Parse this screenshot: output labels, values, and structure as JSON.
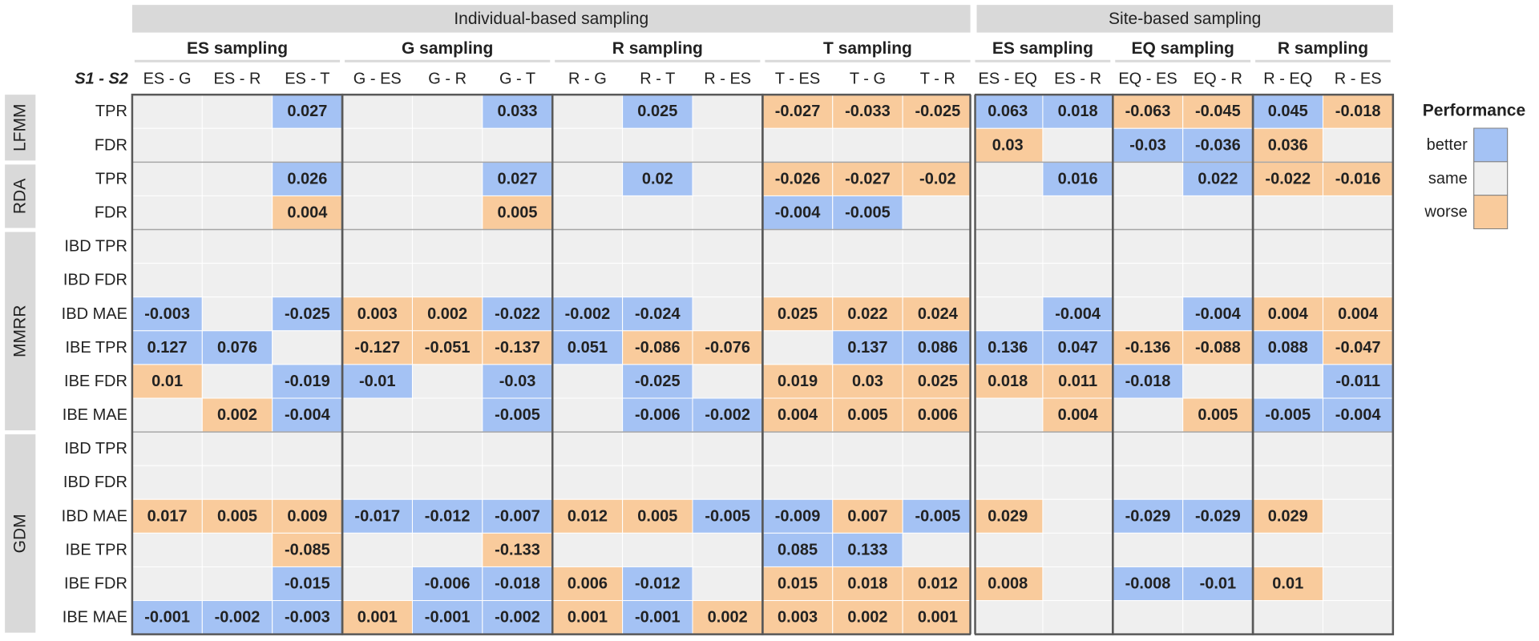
{
  "chart_data": {
    "type": "heatmap",
    "groups": [
      {
        "label": "Individual-based sampling",
        "span": 12
      },
      {
        "label": "Site-based sampling",
        "span": 6
      }
    ],
    "subgroups": [
      {
        "label": "ES sampling",
        "span": 3
      },
      {
        "label": "G sampling",
        "span": 3
      },
      {
        "label": "R sampling",
        "span": 3
      },
      {
        "label": "T sampling",
        "span": 3
      },
      {
        "label": "ES sampling",
        "span": 2
      },
      {
        "label": "EQ sampling",
        "span": 2
      },
      {
        "label": "R sampling",
        "span": 2
      }
    ],
    "corner_label": "S1  -  S2",
    "columns": [
      "ES - G",
      "ES - R",
      "ES - T",
      "G - ES",
      "G - R",
      "G - T",
      "R - G",
      "R - T",
      "R - ES",
      "T - ES",
      "T - G",
      "T - R",
      "ES - EQ",
      "ES - R",
      "EQ - ES",
      "EQ - R",
      "R - EQ",
      "R - ES"
    ],
    "method_blocks": [
      {
        "label": "LFMM",
        "rows": 2
      },
      {
        "label": "RDA",
        "rows": 2
      },
      {
        "label": "MMRR",
        "rows": 6
      },
      {
        "label": "GDM",
        "rows": 6
      }
    ],
    "rows": [
      "TPR",
      "FDR",
      "TPR",
      "FDR",
      "IBD TPR",
      "IBD FDR",
      "IBD MAE",
      "IBE TPR",
      "IBE FDR",
      "IBE MAE",
      "IBD TPR",
      "IBD FDR",
      "IBD MAE",
      "IBE TPR",
      "IBE FDR",
      "IBE MAE"
    ],
    "cells": [
      [
        [
          "s",
          ""
        ],
        [
          "s",
          ""
        ],
        [
          "b",
          "0.027"
        ],
        [
          "s",
          ""
        ],
        [
          "s",
          ""
        ],
        [
          "b",
          "0.033"
        ],
        [
          "s",
          ""
        ],
        [
          "b",
          "0.025"
        ],
        [
          "s",
          ""
        ],
        [
          "w",
          "-0.027"
        ],
        [
          "w",
          "-0.033"
        ],
        [
          "w",
          "-0.025"
        ],
        [
          "b",
          "0.063"
        ],
        [
          "b",
          "0.018"
        ],
        [
          "w",
          "-0.063"
        ],
        [
          "w",
          "-0.045"
        ],
        [
          "b",
          "0.045"
        ],
        [
          "w",
          "-0.018"
        ]
      ],
      [
        [
          "s",
          ""
        ],
        [
          "s",
          ""
        ],
        [
          "s",
          ""
        ],
        [
          "s",
          ""
        ],
        [
          "s",
          ""
        ],
        [
          "s",
          ""
        ],
        [
          "s",
          ""
        ],
        [
          "s",
          ""
        ],
        [
          "s",
          ""
        ],
        [
          "s",
          ""
        ],
        [
          "s",
          ""
        ],
        [
          "s",
          ""
        ],
        [
          "w",
          "0.03"
        ],
        [
          "s",
          ""
        ],
        [
          "b",
          "-0.03"
        ],
        [
          "b",
          "-0.036"
        ],
        [
          "w",
          "0.036"
        ],
        [
          "s",
          ""
        ]
      ],
      [
        [
          "s",
          ""
        ],
        [
          "s",
          ""
        ],
        [
          "b",
          "0.026"
        ],
        [
          "s",
          ""
        ],
        [
          "s",
          ""
        ],
        [
          "b",
          "0.027"
        ],
        [
          "s",
          ""
        ],
        [
          "b",
          "0.02"
        ],
        [
          "s",
          ""
        ],
        [
          "w",
          "-0.026"
        ],
        [
          "w",
          "-0.027"
        ],
        [
          "w",
          "-0.02"
        ],
        [
          "s",
          ""
        ],
        [
          "b",
          "0.016"
        ],
        [
          "s",
          ""
        ],
        [
          "b",
          "0.022"
        ],
        [
          "w",
          "-0.022"
        ],
        [
          "w",
          "-0.016"
        ]
      ],
      [
        [
          "s",
          ""
        ],
        [
          "s",
          ""
        ],
        [
          "w",
          "0.004"
        ],
        [
          "s",
          ""
        ],
        [
          "s",
          ""
        ],
        [
          "w",
          "0.005"
        ],
        [
          "s",
          ""
        ],
        [
          "s",
          ""
        ],
        [
          "s",
          ""
        ],
        [
          "b",
          "-0.004"
        ],
        [
          "b",
          "-0.005"
        ],
        [
          "s",
          ""
        ],
        [
          "s",
          ""
        ],
        [
          "s",
          ""
        ],
        [
          "s",
          ""
        ],
        [
          "s",
          ""
        ],
        [
          "s",
          ""
        ],
        [
          "s",
          ""
        ]
      ],
      [
        [
          "s",
          ""
        ],
        [
          "s",
          ""
        ],
        [
          "s",
          ""
        ],
        [
          "s",
          ""
        ],
        [
          "s",
          ""
        ],
        [
          "s",
          ""
        ],
        [
          "s",
          ""
        ],
        [
          "s",
          ""
        ],
        [
          "s",
          ""
        ],
        [
          "s",
          ""
        ],
        [
          "s",
          ""
        ],
        [
          "s",
          ""
        ],
        [
          "s",
          ""
        ],
        [
          "s",
          ""
        ],
        [
          "s",
          ""
        ],
        [
          "s",
          ""
        ],
        [
          "s",
          ""
        ],
        [
          "s",
          ""
        ]
      ],
      [
        [
          "s",
          ""
        ],
        [
          "s",
          ""
        ],
        [
          "s",
          ""
        ],
        [
          "s",
          ""
        ],
        [
          "s",
          ""
        ],
        [
          "s",
          ""
        ],
        [
          "s",
          ""
        ],
        [
          "s",
          ""
        ],
        [
          "s",
          ""
        ],
        [
          "s",
          ""
        ],
        [
          "s",
          ""
        ],
        [
          "s",
          ""
        ],
        [
          "s",
          ""
        ],
        [
          "s",
          ""
        ],
        [
          "s",
          ""
        ],
        [
          "s",
          ""
        ],
        [
          "s",
          ""
        ],
        [
          "s",
          ""
        ]
      ],
      [
        [
          "b",
          "-0.003"
        ],
        [
          "s",
          ""
        ],
        [
          "b",
          "-0.025"
        ],
        [
          "w",
          "0.003"
        ],
        [
          "w",
          "0.002"
        ],
        [
          "b",
          "-0.022"
        ],
        [
          "b",
          "-0.002"
        ],
        [
          "b",
          "-0.024"
        ],
        [
          "s",
          ""
        ],
        [
          "w",
          "0.025"
        ],
        [
          "w",
          "0.022"
        ],
        [
          "w",
          "0.024"
        ],
        [
          "s",
          ""
        ],
        [
          "b",
          "-0.004"
        ],
        [
          "s",
          ""
        ],
        [
          "b",
          "-0.004"
        ],
        [
          "w",
          "0.004"
        ],
        [
          "w",
          "0.004"
        ]
      ],
      [
        [
          "b",
          "0.127"
        ],
        [
          "b",
          "0.076"
        ],
        [
          "s",
          ""
        ],
        [
          "w",
          "-0.127"
        ],
        [
          "w",
          "-0.051"
        ],
        [
          "w",
          "-0.137"
        ],
        [
          "b",
          "0.051"
        ],
        [
          "w",
          "-0.086"
        ],
        [
          "w",
          "-0.076"
        ],
        [
          "s",
          ""
        ],
        [
          "b",
          "0.137"
        ],
        [
          "b",
          "0.086"
        ],
        [
          "b",
          "0.136"
        ],
        [
          "b",
          "0.047"
        ],
        [
          "w",
          "-0.136"
        ],
        [
          "w",
          "-0.088"
        ],
        [
          "b",
          "0.088"
        ],
        [
          "w",
          "-0.047"
        ]
      ],
      [
        [
          "w",
          "0.01"
        ],
        [
          "s",
          ""
        ],
        [
          "b",
          "-0.019"
        ],
        [
          "b",
          "-0.01"
        ],
        [
          "s",
          ""
        ],
        [
          "b",
          "-0.03"
        ],
        [
          "s",
          ""
        ],
        [
          "b",
          "-0.025"
        ],
        [
          "s",
          ""
        ],
        [
          "w",
          "0.019"
        ],
        [
          "w",
          "0.03"
        ],
        [
          "w",
          "0.025"
        ],
        [
          "w",
          "0.018"
        ],
        [
          "w",
          "0.011"
        ],
        [
          "b",
          "-0.018"
        ],
        [
          "s",
          ""
        ],
        [
          "s",
          ""
        ],
        [
          "b",
          "-0.011"
        ]
      ],
      [
        [
          "s",
          ""
        ],
        [
          "w",
          "0.002"
        ],
        [
          "b",
          "-0.004"
        ],
        [
          "s",
          ""
        ],
        [
          "s",
          ""
        ],
        [
          "b",
          "-0.005"
        ],
        [
          "s",
          ""
        ],
        [
          "b",
          "-0.006"
        ],
        [
          "b",
          "-0.002"
        ],
        [
          "w",
          "0.004"
        ],
        [
          "w",
          "0.005"
        ],
        [
          "w",
          "0.006"
        ],
        [
          "s",
          ""
        ],
        [
          "w",
          "0.004"
        ],
        [
          "s",
          ""
        ],
        [
          "w",
          "0.005"
        ],
        [
          "b",
          "-0.005"
        ],
        [
          "b",
          "-0.004"
        ]
      ],
      [
        [
          "s",
          ""
        ],
        [
          "s",
          ""
        ],
        [
          "s",
          ""
        ],
        [
          "s",
          ""
        ],
        [
          "s",
          ""
        ],
        [
          "s",
          ""
        ],
        [
          "s",
          ""
        ],
        [
          "s",
          ""
        ],
        [
          "s",
          ""
        ],
        [
          "s",
          ""
        ],
        [
          "s",
          ""
        ],
        [
          "s",
          ""
        ],
        [
          "s",
          ""
        ],
        [
          "s",
          ""
        ],
        [
          "s",
          ""
        ],
        [
          "s",
          ""
        ],
        [
          "s",
          ""
        ],
        [
          "s",
          ""
        ]
      ],
      [
        [
          "s",
          ""
        ],
        [
          "s",
          ""
        ],
        [
          "s",
          ""
        ],
        [
          "s",
          ""
        ],
        [
          "s",
          ""
        ],
        [
          "s",
          ""
        ],
        [
          "s",
          ""
        ],
        [
          "s",
          ""
        ],
        [
          "s",
          ""
        ],
        [
          "s",
          ""
        ],
        [
          "s",
          ""
        ],
        [
          "s",
          ""
        ],
        [
          "s",
          ""
        ],
        [
          "s",
          ""
        ],
        [
          "s",
          ""
        ],
        [
          "s",
          ""
        ],
        [
          "s",
          ""
        ],
        [
          "s",
          ""
        ]
      ],
      [
        [
          "w",
          "0.017"
        ],
        [
          "w",
          "0.005"
        ],
        [
          "w",
          "0.009"
        ],
        [
          "b",
          "-0.017"
        ],
        [
          "b",
          "-0.012"
        ],
        [
          "b",
          "-0.007"
        ],
        [
          "w",
          "0.012"
        ],
        [
          "w",
          "0.005"
        ],
        [
          "b",
          "-0.005"
        ],
        [
          "b",
          "-0.009"
        ],
        [
          "w",
          "0.007"
        ],
        [
          "b",
          "-0.005"
        ],
        [
          "w",
          "0.029"
        ],
        [
          "s",
          ""
        ],
        [
          "b",
          "-0.029"
        ],
        [
          "b",
          "-0.029"
        ],
        [
          "w",
          "0.029"
        ],
        [
          "s",
          ""
        ]
      ],
      [
        [
          "s",
          ""
        ],
        [
          "s",
          ""
        ],
        [
          "w",
          "-0.085"
        ],
        [
          "s",
          ""
        ],
        [
          "s",
          ""
        ],
        [
          "w",
          "-0.133"
        ],
        [
          "s",
          ""
        ],
        [
          "s",
          ""
        ],
        [
          "s",
          ""
        ],
        [
          "b",
          "0.085"
        ],
        [
          "b",
          "0.133"
        ],
        [
          "s",
          ""
        ],
        [
          "s",
          ""
        ],
        [
          "s",
          ""
        ],
        [
          "s",
          ""
        ],
        [
          "s",
          ""
        ],
        [
          "s",
          ""
        ],
        [
          "s",
          ""
        ]
      ],
      [
        [
          "s",
          ""
        ],
        [
          "s",
          ""
        ],
        [
          "b",
          "-0.015"
        ],
        [
          "s",
          ""
        ],
        [
          "b",
          "-0.006"
        ],
        [
          "b",
          "-0.018"
        ],
        [
          "w",
          "0.006"
        ],
        [
          "b",
          "-0.012"
        ],
        [
          "s",
          ""
        ],
        [
          "w",
          "0.015"
        ],
        [
          "w",
          "0.018"
        ],
        [
          "w",
          "0.012"
        ],
        [
          "w",
          "0.008"
        ],
        [
          "s",
          ""
        ],
        [
          "b",
          "-0.008"
        ],
        [
          "b",
          "-0.01"
        ],
        [
          "w",
          "0.01"
        ],
        [
          "s",
          ""
        ]
      ],
      [
        [
          "b",
          "-0.001"
        ],
        [
          "b",
          "-0.002"
        ],
        [
          "b",
          "-0.003"
        ],
        [
          "w",
          "0.001"
        ],
        [
          "b",
          "-0.001"
        ],
        [
          "b",
          "-0.002"
        ],
        [
          "w",
          "0.001"
        ],
        [
          "b",
          "-0.001"
        ],
        [
          "w",
          "0.002"
        ],
        [
          "w",
          "0.003"
        ],
        [
          "w",
          "0.002"
        ],
        [
          "w",
          "0.001"
        ],
        [
          "s",
          ""
        ],
        [
          "s",
          ""
        ],
        [
          "s",
          ""
        ],
        [
          "s",
          ""
        ],
        [
          "s",
          ""
        ],
        [
          "s",
          ""
        ]
      ]
    ],
    "legend": {
      "title": "Performance",
      "position": "right",
      "items": [
        {
          "key": "b",
          "label": "better",
          "color": "#a4c2f4"
        },
        {
          "key": "s",
          "label": "same",
          "color": "#efefef"
        },
        {
          "key": "w",
          "label": "worse",
          "color": "#f9cb9c"
        }
      ]
    },
    "colors": {
      "header_bg": "#d9d9d9",
      "block_bg": "#d9d9d9",
      "border": "#595959",
      "text": "#222222"
    }
  }
}
